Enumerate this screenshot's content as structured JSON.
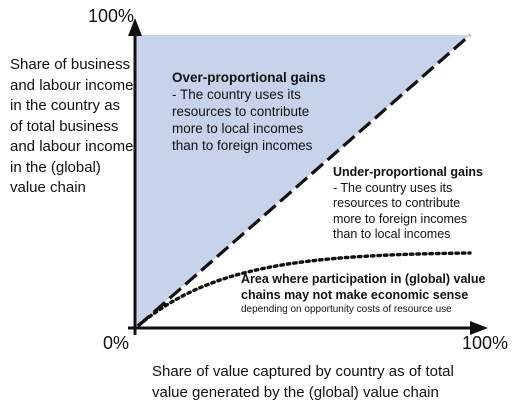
{
  "diagram": {
    "y_axis_label": "Share of business and labour income in the country as of total business and labour income in the (global) value chain",
    "x_axis_label": "Share of value captured by country as of total value generated by the (global) value chain",
    "y_max_tick": "100%",
    "origin_tick": "0%",
    "x_max_tick": "100%",
    "over_proportional": {
      "title": "Over-proportional gains",
      "separator": " -",
      "description": "The country uses its resources to contribute more to local incomes than to foreign incomes"
    },
    "under_proportional": {
      "title": "Under-proportional gains",
      "separator": " -",
      "description": "The country uses its resources to contribute more to foreign incomes than to local incomes"
    },
    "no_sense_area": {
      "title": "Area where participation in (global) value chains may not make economic sense",
      "note": "depending on opportunity costs of resource use"
    },
    "colors": {
      "shaded_region": "#c7d3ea",
      "axis": "#111111",
      "diagonal": "#111111",
      "threshold_curve": "#111111"
    }
  }
}
